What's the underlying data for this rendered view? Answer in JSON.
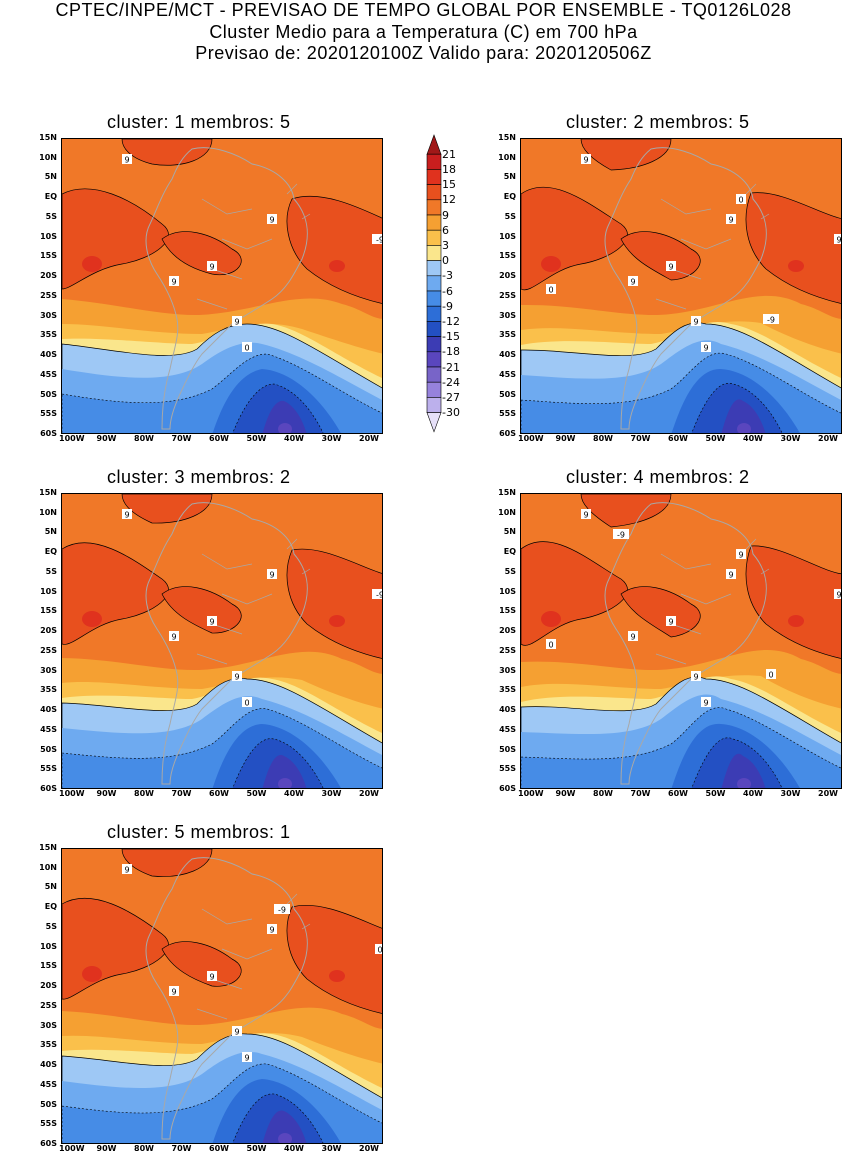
{
  "header": {
    "line1": "CPTEC/INPE/MCT - PREVISAO DE TEMPO GLOBAL POR ENSEMBLE - TQ0126L028",
    "line2": "Cluster Medio para a Temperatura (C) em 700 hPa",
    "line3": "Previsao de: 2020120100Z    Valido para: 2020120506Z"
  },
  "axes": {
    "lat_labels": [
      "15N",
      "10N",
      "5N",
      "EQ",
      "5S",
      "10S",
      "15S",
      "20S",
      "25S",
      "30S",
      "35S",
      "40S",
      "45S",
      "50S",
      "55S",
      "60S"
    ],
    "lon_labels": [
      "100W",
      "90W",
      "80W",
      "70W",
      "60W",
      "50W",
      "40W",
      "30W",
      "20W"
    ]
  },
  "colorbar": {
    "labels": [
      "21",
      "18",
      "15",
      "12",
      "9",
      "6",
      "3",
      "0",
      "-3",
      "-6",
      "-9",
      "-12",
      "-15",
      "-18",
      "-21",
      "-24",
      "-27",
      "-30"
    ],
    "colors": [
      "#a01818",
      "#c81e1e",
      "#e0321e",
      "#e8501e",
      "#f07828",
      "#f5a032",
      "#fac04b",
      "#fae68c",
      "#9ec8f5",
      "#6eaaf0",
      "#468ce6",
      "#2d6ed7",
      "#2350c3",
      "#3c3cb4",
      "#5a46be",
      "#7864c8",
      "#9682dc",
      "#bcb0ec",
      "#e6e0f8"
    ]
  },
  "panels": [
    {
      "title": "cluster: 1   membros: 5",
      "contour_labels": [
        "9",
        "9",
        "9",
        "9",
        "9",
        "0",
        "-9"
      ]
    },
    {
      "title": "cluster: 2   membros: 5",
      "contour_labels": [
        "9",
        "9",
        "9",
        "9",
        "9",
        "9",
        "9",
        "0",
        "0",
        "-9"
      ]
    },
    {
      "title": "cluster: 3   membros: 2",
      "contour_labels": [
        "9",
        "9",
        "9",
        "9",
        "9",
        "0",
        "-9"
      ]
    },
    {
      "title": "cluster: 4   membros: 2",
      "contour_labels": [
        "9",
        "9",
        "9",
        "9",
        "9",
        "9",
        "9",
        "9",
        "0",
        "0",
        "-9"
      ]
    },
    {
      "title": "cluster: 5   membros: 1",
      "contour_labels": [
        "9",
        "9",
        "9",
        "9",
        "9",
        "9",
        "0",
        "-9"
      ]
    }
  ]
}
